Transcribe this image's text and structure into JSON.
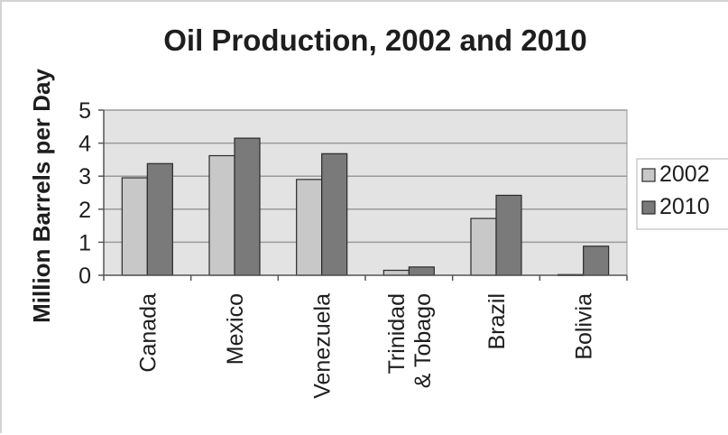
{
  "chart_data": {
    "type": "bar",
    "title": "Oil Production, 2002 and 2010",
    "ylabel": "Million Barrels per Day",
    "xlabel": "",
    "categories": [
      [
        "Canada"
      ],
      [
        "Mexico"
      ],
      [
        "Venezuela"
      ],
      [
        "Trinidad",
        "& Tobago"
      ],
      [
        "Brazil"
      ],
      [
        "Bolivia"
      ]
    ],
    "series": [
      {
        "name": "2002",
        "color": "#c8c8c8",
        "values": [
          2.95,
          3.62,
          2.9,
          0.15,
          1.72,
          0.02
        ]
      },
      {
        "name": "2010",
        "color": "#7a7a7a",
        "values": [
          3.38,
          4.15,
          3.68,
          0.25,
          2.42,
          0.88
        ]
      }
    ],
    "ylim": [
      0,
      5
    ],
    "yticks": [
      0,
      1,
      2,
      3,
      4,
      5
    ],
    "grid": true,
    "legend": "right",
    "plot_background": "#e3e3e3"
  }
}
